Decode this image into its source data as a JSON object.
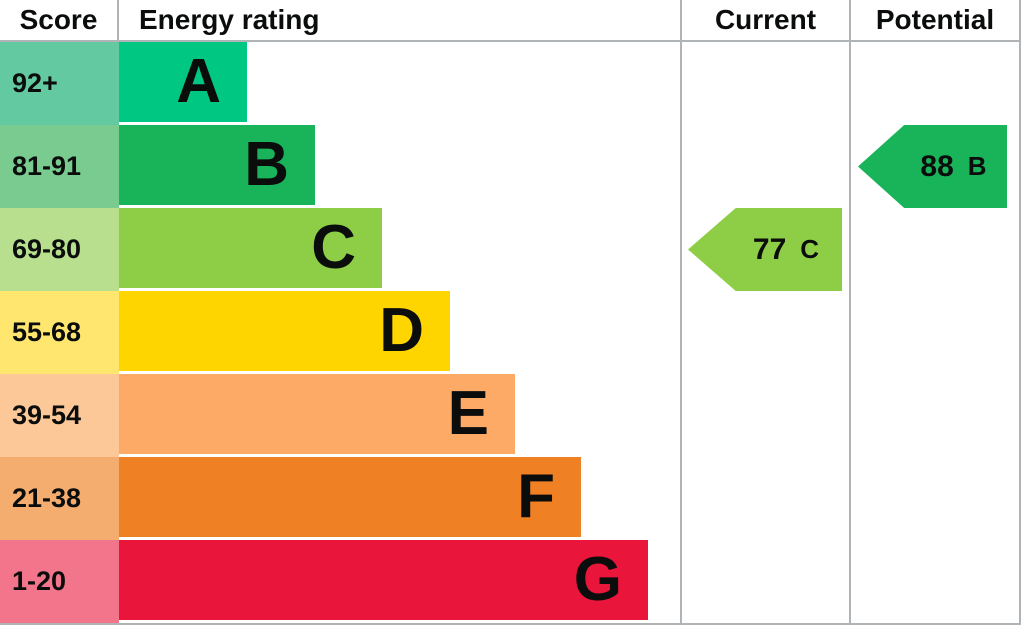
{
  "header": {
    "score": "Score",
    "energy_rating": "Energy rating",
    "current": "Current",
    "potential": "Potential"
  },
  "bands": [
    {
      "score": "92+",
      "letter": "A",
      "color": "#00c781",
      "score_color": "#62c9a0"
    },
    {
      "score": "81-91",
      "letter": "B",
      "color": "#19b459",
      "score_color": "#79cb90"
    },
    {
      "score": "69-80",
      "letter": "C",
      "color": "#8dce46",
      "score_color": "#b7df8e"
    },
    {
      "score": "55-68",
      "letter": "D",
      "color": "#ffd500",
      "score_color": "#ffe76f"
    },
    {
      "score": "39-54",
      "letter": "E",
      "color": "#fcaa65",
      "score_color": "#fcc897"
    },
    {
      "score": "21-38",
      "letter": "F",
      "color": "#ef8023",
      "score_color": "#f4ad6e"
    },
    {
      "score": "1-20",
      "letter": "G",
      "color": "#e9153b",
      "score_color": "#f2758b"
    }
  ],
  "current": {
    "value": "77",
    "letter": "C",
    "color": "#8dce46"
  },
  "potential": {
    "value": "88",
    "letter": "B",
    "color": "#19b459"
  },
  "chart_data": {
    "type": "bar",
    "title": "Energy rating",
    "categories": [
      "A",
      "B",
      "C",
      "D",
      "E",
      "F",
      "G"
    ],
    "score_ranges": [
      "92+",
      "81-91",
      "69-80",
      "55-68",
      "39-54",
      "21-38",
      "1-20"
    ],
    "band_colors": [
      "#00c781",
      "#19b459",
      "#8dce46",
      "#ffd500",
      "#fcaa65",
      "#ef8023",
      "#e9153b"
    ],
    "bar_relative_lengths": [
      128,
      196,
      263,
      331,
      396,
      462,
      529
    ],
    "columns": [
      "Score",
      "Energy rating",
      "Current",
      "Potential"
    ],
    "current_rating": {
      "value": 77,
      "band": "C"
    },
    "potential_rating": {
      "value": 88,
      "band": "B"
    },
    "layout": {
      "grid": "off",
      "bars": "horizontal staircase, best (A) at top"
    }
  }
}
